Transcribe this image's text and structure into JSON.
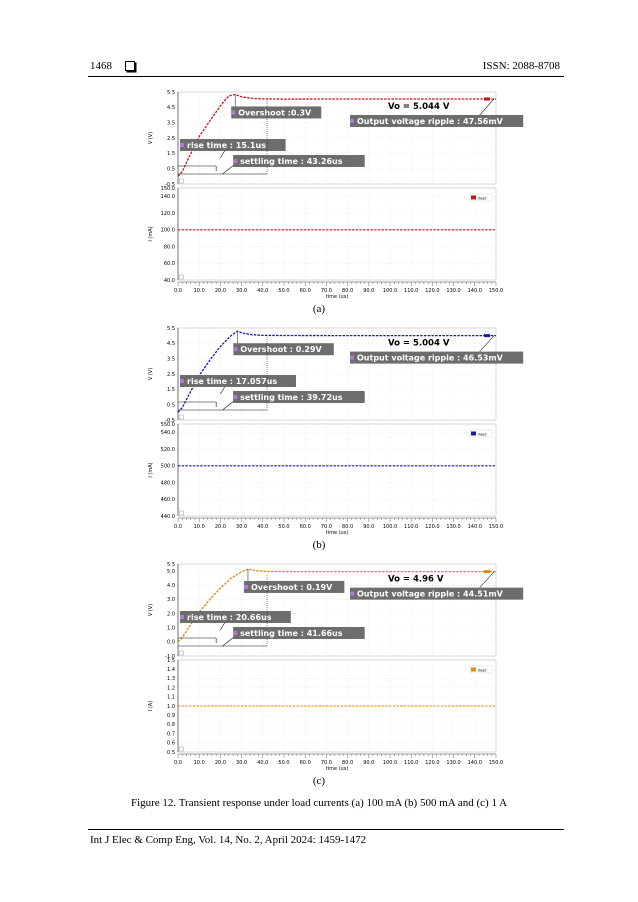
{
  "header": {
    "page_number": "1468",
    "issn": "ISSN: 2088-8708"
  },
  "footer": {
    "journal": "Int J Elec & Comp Eng, Vol. 14, No. 2, April 2024: 1459-1472"
  },
  "caption": "Figure 12. Transient response under load currents (a) 100 mA (b) 500 mA and (c) 1 A",
  "chart_data": [
    {
      "type": "line",
      "panel": "(a)",
      "color": "#c0181b",
      "xlabel": "time (us)",
      "xlim": [
        0,
        150
      ],
      "x_ticks": [
        "0.0",
        "10.0",
        "20.0",
        "30.0",
        "40.0",
        "50.0",
        "60.0",
        "70.0",
        "80.0",
        "90.0",
        "100.0",
        "110.0",
        "120.0",
        "130.0",
        "140.0",
        "150.0"
      ],
      "voltage": {
        "ylabel": "V (V)",
        "ylim": [
          -0.5,
          5.5
        ],
        "y_ticks": [
          "5.5",
          "4.5",
          "3.5",
          "2.5",
          "1.5",
          "0.5",
          "-0.5"
        ],
        "series": [
          {
            "x": [
              0,
              2,
              5,
              10,
              15,
              20,
              24,
              27,
              30,
              35,
              40,
              50,
              70,
              100,
              150
            ],
            "y": [
              0,
              0.3,
              1.2,
              2.6,
              3.6,
              4.6,
              5.25,
              5.34,
              5.18,
              5.08,
              5.05,
              5.04,
              5.044,
              5.044,
              5.044
            ]
          }
        ],
        "annotations": {
          "vo": "Vo = 5.044 V",
          "overshoot": "Overshoot :0.3V",
          "ripple": "Output voltage ripple : 47.56mV",
          "rise": "rise time : 15.1us",
          "settling": "settling time : 43.26us"
        }
      },
      "current": {
        "ylabel": "I (mA)",
        "ylim": [
          40,
          150
        ],
        "y_ticks": [
          "150.0",
          "140.0",
          "120.0",
          "100.0",
          "80.0",
          "60.0",
          "40.0"
        ],
        "series": [
          {
            "name": "Iload",
            "x": [
              0,
              150
            ],
            "y": [
              100,
              100
            ]
          }
        ]
      }
    },
    {
      "type": "line",
      "panel": "(b)",
      "color": "#1a1ab0",
      "xlabel": "time (us)",
      "xlim": [
        0,
        150
      ],
      "x_ticks": [
        "0.0",
        "10.0",
        "20.0",
        "30.0",
        "40.0",
        "50.0",
        "60.0",
        "70.0",
        "80.0",
        "90.0",
        "100.0",
        "110.0",
        "120.0",
        "130.0",
        "140.0",
        "150.0"
      ],
      "voltage": {
        "ylabel": "V (V)",
        "ylim": [
          -0.5,
          5.5
        ],
        "y_ticks": [
          "5.5",
          "4.5",
          "3.5",
          "2.5",
          "1.5",
          "0.5",
          "-0.5"
        ],
        "series": [
          {
            "x": [
              0,
              2,
              5,
              10,
              15,
              20,
              25,
              28,
              31,
              35,
              40,
              50,
              70,
              100,
              150
            ],
            "y": [
              0,
              0.3,
              1.1,
              2.4,
              3.4,
              4.3,
              5.0,
              5.29,
              5.15,
              5.06,
              5.02,
              5.01,
              5.004,
              5.004,
              5.004
            ]
          }
        ],
        "annotations": {
          "vo": "Vo = 5.004 V",
          "overshoot": "Overshoot : 0.29V",
          "ripple": "Output voltage ripple : 46.53mV",
          "rise": "rise time : 17.057us",
          "settling": "settling time : 39.72us"
        }
      },
      "current": {
        "ylabel": "I (mA)",
        "ylim": [
          440,
          550
        ],
        "y_ticks": [
          "550.0",
          "540.0",
          "520.0",
          "500.0",
          "480.0",
          "460.0",
          "440.0"
        ],
        "series": [
          {
            "name": "Iload",
            "x": [
              0,
              150
            ],
            "y": [
              500,
              500
            ]
          }
        ]
      }
    },
    {
      "type": "line",
      "panel": "(c)",
      "color": "#e08a10",
      "xlabel": "time (us)",
      "xlim": [
        0,
        150
      ],
      "x_ticks": [
        "0.0",
        "10.0",
        "20.0",
        "30.0",
        "40.0",
        "50.0",
        "60.0",
        "70.0",
        "80.0",
        "90.0",
        "100.0",
        "110.0",
        "120.0",
        "130.0",
        "140.0",
        "150.0"
      ],
      "voltage": {
        "ylabel": "V (V)",
        "ylim": [
          -1.0,
          5.5
        ],
        "y_ticks": [
          "5.5",
          "5.0",
          "4.0",
          "3.0",
          "2.0",
          "1.0",
          "0.0",
          "-1.0"
        ],
        "series": [
          {
            "x": [
              0,
              2,
              5,
              10,
              15,
              20,
              25,
              30,
              33,
              36,
              40,
              50,
              70,
              100,
              150
            ],
            "y": [
              0,
              0.3,
              1.0,
              2.1,
              3.0,
              3.8,
              4.5,
              4.95,
              5.15,
              5.05,
              4.98,
              4.96,
              4.96,
              4.96,
              4.96
            ]
          }
        ],
        "annotations": {
          "vo": "Vo = 4.96 V",
          "overshoot": "Overshoot : 0.19V",
          "ripple": "Output voltage ripple : 44.51mV",
          "rise": "rise time : 20.66us",
          "settling": "settling time : 41.66us"
        }
      },
      "current": {
        "ylabel": "I (A)",
        "ylim": [
          0.5,
          1.5
        ],
        "y_ticks": [
          "1.5",
          "1.4",
          "1.3",
          "1.2",
          "1.1",
          "1.0",
          "0.9",
          "0.8",
          "0.7",
          "0.6",
          "0.5"
        ],
        "series": [
          {
            "name": "Iload",
            "x": [
              0,
              150
            ],
            "y": [
              1.0,
              1.0
            ]
          }
        ]
      }
    }
  ]
}
